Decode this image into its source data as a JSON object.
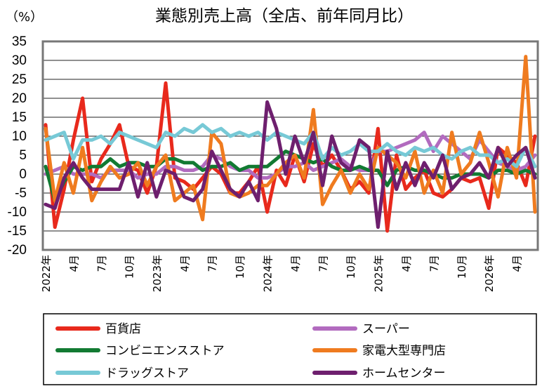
{
  "chart_data": {
    "type": "line",
    "title": "業態別売上高（全店、前年同月比）",
    "unit": "（%）",
    "ylim": [
      -20,
      35
    ],
    "yticks": [
      35,
      30,
      25,
      20,
      15,
      10,
      5,
      0,
      -5,
      -10,
      -15,
      -20
    ],
    "ytick_labels": [
      "35",
      "30",
      "25",
      "20",
      "15",
      "10",
      "5",
      "0",
      "-5",
      "-10",
      "-15",
      "-20"
    ],
    "grid": true,
    "legend_position": "bottom",
    "x": [
      "2022-01",
      "2022-02",
      "2022-03",
      "2022-04",
      "2022-05",
      "2022-06",
      "2022-07",
      "2022-08",
      "2022-09",
      "2022-10",
      "2022-11",
      "2022-12",
      "2023-01",
      "2023-02",
      "2023-03",
      "2023-04",
      "2023-05",
      "2023-06",
      "2023-07",
      "2023-08",
      "2023-09",
      "2023-10",
      "2023-11",
      "2023-12",
      "2024-01",
      "2024-02",
      "2024-03",
      "2024-04",
      "2024-05",
      "2024-06",
      "2024-07",
      "2024-08",
      "2024-09",
      "2024-10",
      "2024-11",
      "2024-12",
      "2025-01",
      "2025-02",
      "2025-03",
      "2025-04",
      "2025-05",
      "2025-06",
      "2025-07",
      "2025-08",
      "2025-09",
      "2025-10",
      "2025-11",
      "2025-12",
      "2026-01",
      "2026-02",
      "2026-03",
      "2026-04",
      "2026-05",
      "2026-06"
    ],
    "xtick_labels": [
      {
        "index": 0,
        "label": "2022年"
      },
      {
        "index": 3,
        "label": "4月"
      },
      {
        "index": 6,
        "label": "7月"
      },
      {
        "index": 9,
        "label": "10月"
      },
      {
        "index": 12,
        "label": "2023年"
      },
      {
        "index": 15,
        "label": "4月"
      },
      {
        "index": 18,
        "label": "7月"
      },
      {
        "index": 21,
        "label": "10月"
      },
      {
        "index": 24,
        "label": "2024年"
      },
      {
        "index": 27,
        "label": "4月"
      },
      {
        "index": 30,
        "label": "7月"
      },
      {
        "index": 33,
        "label": "10月"
      },
      {
        "index": 36,
        "label": "2025年"
      },
      {
        "index": 39,
        "label": "4月"
      },
      {
        "index": 42,
        "label": "7月"
      },
      {
        "index": 45,
        "label": "10月"
      },
      {
        "index": 48,
        "label": "2026年"
      },
      {
        "index": 51,
        "label": "4月"
      }
    ],
    "series": [
      {
        "name": "百貨店",
        "color": "#e8291c",
        "values": [
          13,
          -14,
          -4,
          9,
          20,
          -2,
          4,
          8,
          13,
          2,
          1,
          -5,
          2,
          24,
          -1,
          -2,
          -4,
          -1,
          2,
          0,
          -5,
          -5,
          -2,
          2,
          -10,
          1,
          -3,
          5,
          -2,
          8,
          2,
          5,
          1,
          -4,
          -2,
          -5,
          12,
          -15,
          5,
          -4,
          -1,
          1,
          -5,
          -6,
          -4,
          -1,
          -2,
          -1,
          -9,
          7,
          5,
          3,
          -3,
          10
        ]
      },
      {
        "name": "スーパー",
        "color": "#b26bbf",
        "values": [
          0,
          1,
          2,
          0,
          0,
          0,
          -1,
          1,
          1,
          1,
          -1,
          0,
          0,
          2,
          2,
          1,
          1,
          2,
          5,
          4,
          2,
          1,
          1,
          -1,
          -1,
          0,
          2,
          2,
          3,
          1,
          2,
          3,
          4,
          2,
          1,
          1,
          6,
          6,
          7,
          8,
          9,
          11,
          6,
          10,
          8,
          6,
          4,
          9,
          6,
          3,
          2,
          1,
          2,
          5
        ]
      },
      {
        "name": "コンビニエンスストア",
        "color": "#127a32",
        "values": [
          2,
          -7,
          -2,
          2,
          1,
          2,
          2,
          4,
          2,
          3,
          3,
          2,
          2,
          4,
          4,
          3,
          3,
          1,
          2,
          2,
          3,
          1,
          2,
          2,
          2,
          4,
          6,
          5,
          4,
          3,
          4,
          2,
          1,
          1,
          2,
          1,
          1,
          -3,
          1,
          2,
          1,
          1,
          0,
          -1,
          -1,
          0,
          0,
          0,
          -1,
          1,
          1,
          0,
          1,
          0
        ]
      },
      {
        "name": "家電大型専門店",
        "color": "#ef7b1f",
        "values": [
          12,
          -7,
          3,
          -5,
          7,
          -7,
          -2,
          2,
          -1,
          0,
          3,
          -3,
          2,
          5,
          -7,
          -5,
          -3,
          -12,
          11,
          8,
          -5,
          -6,
          -5,
          -3,
          -3,
          0,
          3,
          5,
          -1,
          17,
          -8,
          -3,
          1,
          -5,
          0,
          -4,
          7,
          5,
          3,
          -1,
          6,
          -5,
          1,
          -5,
          11,
          0,
          3,
          11,
          3,
          -6,
          7,
          -1,
          31,
          -10
        ]
      },
      {
        "name": "ドラッグストア",
        "color": "#77c9d6",
        "values": [
          9,
          10,
          11,
          4,
          9,
          9,
          10,
          8,
          11,
          10,
          9,
          8,
          7,
          11,
          10,
          12,
          11,
          13,
          11,
          12,
          10,
          11,
          10,
          11,
          9,
          11,
          10,
          9,
          8,
          11,
          4,
          7,
          5,
          6,
          8,
          6,
          6,
          8,
          6,
          5,
          7,
          6,
          7,
          5,
          4,
          6,
          7,
          5,
          5,
          3,
          4,
          2,
          7,
          2
        ]
      },
      {
        "name": "ホームセンター",
        "color": "#6e1f6e",
        "values": [
          -8,
          -9,
          -1,
          3,
          -1,
          -4,
          -4,
          -4,
          -4,
          3,
          -6,
          3,
          -6,
          1,
          0,
          -6,
          -7,
          -4,
          6,
          1,
          -4,
          -6,
          -2,
          -7,
          19,
          12,
          0,
          10,
          3,
          11,
          -3,
          10,
          3,
          1,
          9,
          7,
          -14,
          6,
          -4,
          3,
          -3,
          3,
          -1,
          5,
          -4,
          -1,
          0,
          3,
          -1,
          7,
          2,
          5,
          7,
          -1
        ]
      }
    ]
  }
}
